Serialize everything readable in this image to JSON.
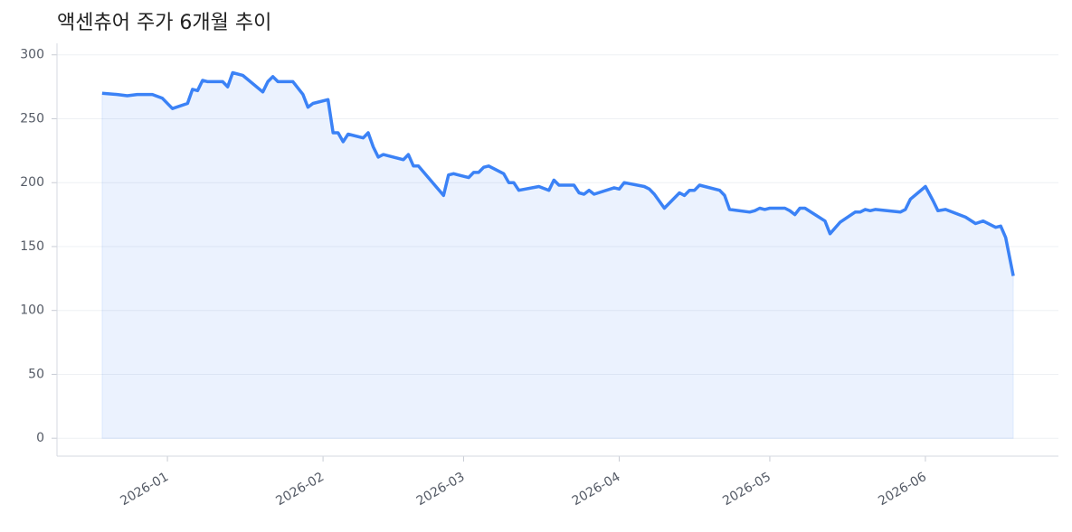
{
  "chart_data": {
    "type": "line",
    "title": "액센츄어 주가 6개월 추이",
    "x": [
      18,
      21,
      23,
      25,
      28,
      30,
      32,
      35,
      36,
      37,
      38,
      39,
      42,
      43,
      44,
      46,
      50,
      51,
      52,
      53,
      56,
      58,
      59,
      60,
      63,
      64,
      65,
      66,
      67,
      70,
      71,
      72,
      73,
      74,
      78,
      79,
      80,
      81,
      86,
      87,
      88,
      91,
      92,
      93,
      94,
      95,
      98,
      99,
      100,
      101,
      105,
      107,
      108,
      109,
      112,
      113,
      114,
      115,
      116,
      120,
      121,
      122,
      126,
      127,
      128,
      130,
      133,
      134,
      135,
      136,
      137,
      141,
      142,
      143,
      147,
      148,
      149,
      150,
      151,
      154,
      155,
      156,
      157,
      158,
      162,
      163,
      165,
      168,
      169,
      170,
      171,
      172,
      177,
      178,
      179,
      182,
      183.5,
      184.5,
      186,
      190,
      192,
      193.5,
      196,
      197,
      198,
      199.5
    ],
    "values": [
      270,
      269,
      268,
      269,
      269,
      266,
      258,
      262,
      273,
      272,
      280,
      279,
      279,
      275,
      286,
      284,
      271,
      279,
      283,
      279,
      279,
      269,
      259,
      262,
      265,
      239,
      239,
      232,
      238,
      235,
      239,
      228,
      220,
      222,
      218,
      222,
      213,
      213,
      190,
      206,
      207,
      204,
      208,
      208,
      212,
      213,
      207,
      200,
      200,
      194,
      197,
      194,
      202,
      198,
      198,
      192,
      191,
      194,
      191,
      196,
      195,
      200,
      197,
      195,
      191,
      180,
      192,
      190,
      194,
      194,
      198,
      194,
      190,
      179,
      177,
      178,
      180,
      179,
      180,
      180,
      178,
      175,
      180,
      180,
      170,
      160,
      169,
      177,
      177,
      179,
      178,
      179,
      177,
      179,
      187,
      197,
      186,
      178,
      179,
      173,
      168,
      170,
      165,
      166,
      157,
      127
    ],
    "color": "#3b82f6",
    "xlim": [
      9,
      208.5
    ],
    "xticks": [
      {
        "value": 31,
        "label": "2026-01"
      },
      {
        "value": 62,
        "label": "2026-02"
      },
      {
        "value": 90,
        "label": "2026-03"
      },
      {
        "value": 121,
        "label": "2026-04"
      },
      {
        "value": 151,
        "label": "2026-05"
      },
      {
        "value": 182,
        "label": "2026-06"
      }
    ],
    "ylim": [
      -14,
      309
    ],
    "yticks": [
      0,
      50,
      100,
      150,
      200,
      250,
      300
    ],
    "grid": true
  }
}
